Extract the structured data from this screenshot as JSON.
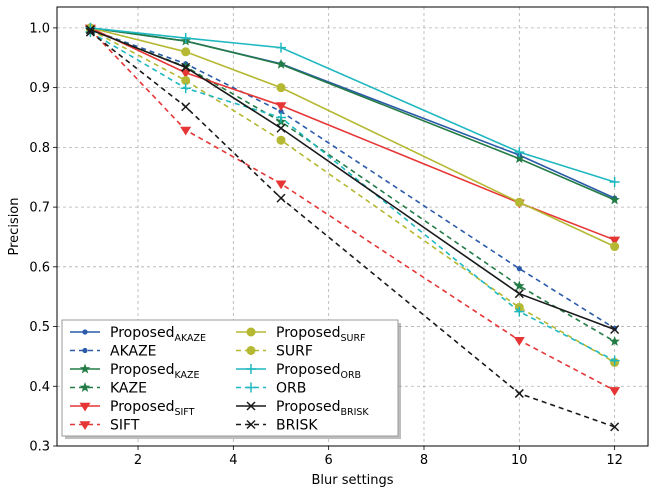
{
  "chart_data": {
    "type": "line",
    "xlabel": "Blur settings",
    "ylabel": "Precision",
    "xlim": [
      0.3,
      12.7
    ],
    "ylim": [
      0.3,
      1.035
    ],
    "xticks": [
      2,
      4,
      6,
      8,
      10,
      12
    ],
    "yticks": [
      0.3,
      0.4,
      0.5,
      0.6,
      0.7,
      0.8,
      0.9,
      1.0
    ],
    "ytick_labels": [
      "0.3",
      "0.4",
      "0.5",
      "0.6",
      "0.7",
      "0.8",
      "0.9",
      "1.0"
    ],
    "grid": true,
    "legend_placement": "lower-left",
    "x": [
      1,
      3,
      5,
      10,
      12
    ],
    "series": [
      {
        "name": "Proposed",
        "sub": "AKAZE",
        "color": "#2a5aa8",
        "dashed": false,
        "marker": "dot",
        "values": [
          1.0,
          0.978,
          0.94,
          0.787,
          0.715
        ]
      },
      {
        "name": "AKAZE",
        "sub": "",
        "color": "#2a5aa8",
        "dashed": true,
        "marker": "dot",
        "values": [
          0.997,
          0.94,
          0.86,
          0.597,
          0.497
        ]
      },
      {
        "name": "Proposed",
        "sub": "KAZE",
        "color": "#237b45",
        "dashed": false,
        "marker": "star",
        "values": [
          1.0,
          0.978,
          0.939,
          0.781,
          0.712
        ]
      },
      {
        "name": "KAZE",
        "sub": "",
        "color": "#237b45",
        "dashed": true,
        "marker": "star",
        "values": [
          0.997,
          0.935,
          0.843,
          0.568,
          0.475
        ]
      },
      {
        "name": "Proposed",
        "sub": "SIFT",
        "color": "#e63535",
        "dashed": false,
        "marker": "tri",
        "values": [
          1.0,
          0.925,
          0.87,
          0.707,
          0.645
        ]
      },
      {
        "name": "SIFT",
        "sub": "",
        "color": "#e63535",
        "dashed": true,
        "marker": "tri",
        "values": [
          0.997,
          0.829,
          0.739,
          0.477,
          0.393
        ]
      },
      {
        "name": "Proposed",
        "sub": "SURF",
        "color": "#b5b832",
        "dashed": false,
        "marker": "circle",
        "values": [
          1.0,
          0.96,
          0.9,
          0.708,
          0.634
        ]
      },
      {
        "name": "SURF",
        "sub": "",
        "color": "#b5b832",
        "dashed": true,
        "marker": "circle",
        "values": [
          0.997,
          0.912,
          0.812,
          0.532,
          0.44
        ]
      },
      {
        "name": "Proposed",
        "sub": "ORB",
        "color": "#1fb8c0",
        "dashed": false,
        "marker": "plus",
        "values": [
          1.0,
          0.983,
          0.967,
          0.792,
          0.742
        ]
      },
      {
        "name": "ORB",
        "sub": "",
        "color": "#1fb8c0",
        "dashed": true,
        "marker": "plus",
        "values": [
          0.993,
          0.899,
          0.85,
          0.525,
          0.443
        ]
      },
      {
        "name": "Proposed",
        "sub": "BRISK",
        "color": "#1a1a1a",
        "dashed": false,
        "marker": "x",
        "values": [
          0.997,
          0.934,
          0.832,
          0.555,
          0.495
        ]
      },
      {
        "name": "BRISK",
        "sub": "",
        "color": "#1a1a1a",
        "dashed": true,
        "marker": "x",
        "values": [
          0.993,
          0.868,
          0.715,
          0.388,
          0.332
        ]
      }
    ]
  }
}
